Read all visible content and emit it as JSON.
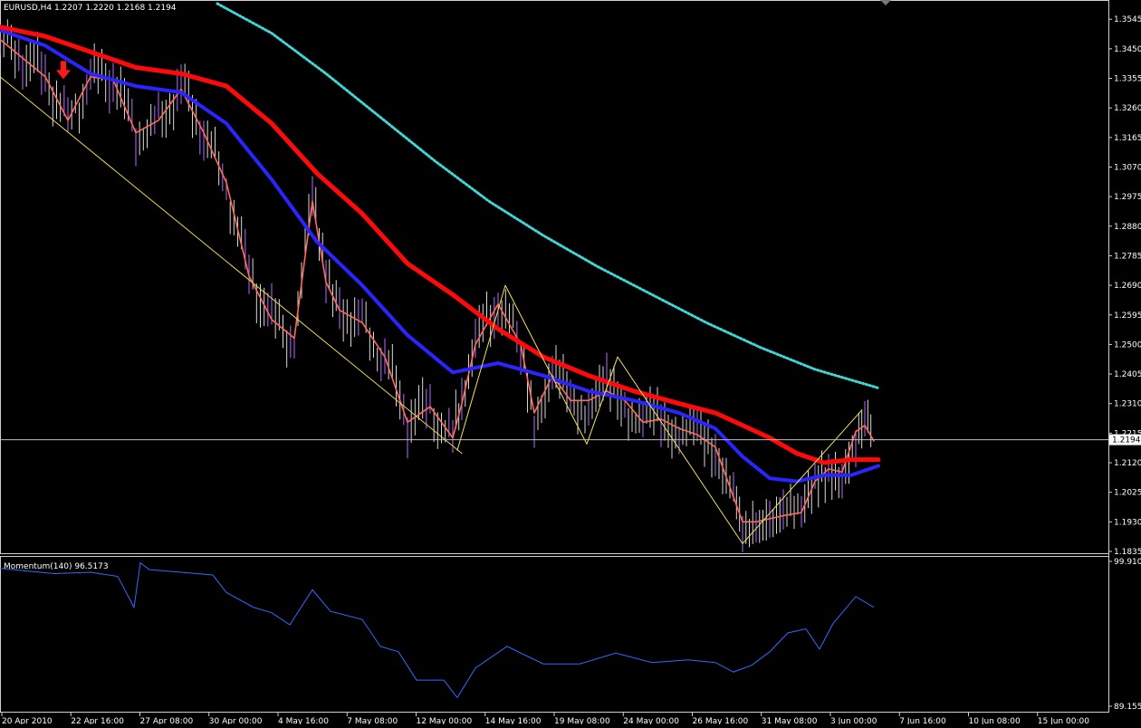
{
  "chart_data": [
    {
      "type": "line",
      "title": "EURUSD,H4  1.2207 1.2220 1.2168 1.2194",
      "price_axis": {
        "ylim": [
          1.1835,
          1.3595
        ],
        "tick_labels": [
          "1.3545",
          "1.3450",
          "1.3355",
          "1.3260",
          "1.3165",
          "1.3070",
          "1.2975",
          "1.2880",
          "1.2785",
          "1.2690",
          "1.2595",
          "1.2500",
          "1.2405",
          "1.2310",
          "1.2215",
          "1.2120",
          "1.2025",
          "1.1930",
          "1.1835"
        ],
        "current_price": "1.2194"
      },
      "x_tick_labels": [
        "20 Apr 2010",
        "22 Apr 16:00",
        "27 Apr 08:00",
        "30 Apr 00:00",
        "4 May 16:00",
        "7 May 08:00",
        "12 May 00:00",
        "14 May 16:00",
        "19 May 08:00",
        "24 May 00:00",
        "26 May 16:00",
        "31 May 08:00",
        "3 Jun 00:00",
        "7 Jun 16:00",
        "10 Jun 08:00",
        "15 Jun 00:00"
      ],
      "series": [
        {
          "style": "price-bars",
          "x": [
            0,
            25,
            50,
            75,
            100,
            125,
            150,
            175,
            200,
            225,
            250,
            275,
            300,
            325,
            345,
            360,
            375,
            400,
            425,
            450,
            475,
            500,
            510,
            525,
            550,
            575,
            590,
            610,
            630,
            650,
            670,
            690,
            710,
            730,
            750,
            770,
            790,
            810,
            820,
            835,
            850,
            865,
            885,
            900,
            915,
            930,
            945,
            955,
            965
          ],
          "y": [
            1.348,
            1.342,
            1.336,
            1.322,
            1.336,
            1.335,
            1.318,
            1.322,
            1.332,
            1.318,
            1.302,
            1.272,
            1.258,
            1.252,
            1.296,
            1.27,
            1.261,
            1.257,
            1.246,
            1.225,
            1.23,
            1.22,
            1.231,
            1.25,
            1.263,
            1.25,
            1.228,
            1.24,
            1.232,
            1.232,
            1.235,
            1.232,
            1.225,
            1.226,
            1.223,
            1.221,
            1.217,
            1.201,
            1.193,
            1.193,
            1.194,
            1.195,
            1.196,
            1.206,
            1.21,
            1.209,
            1.222,
            1.224,
            1.219
          ]
        },
        {
          "style": "ma-salmon",
          "x": [
            0,
            25,
            50,
            75,
            100,
            125,
            150,
            175,
            200,
            225,
            250,
            275,
            300,
            325,
            345,
            360,
            375,
            400,
            425,
            450,
            475,
            500,
            510,
            525,
            550,
            575,
            590,
            610,
            630,
            650,
            670,
            690,
            710,
            730,
            750,
            770,
            790,
            810,
            820,
            835,
            850,
            865,
            885,
            900,
            915,
            930,
            945,
            955,
            965
          ],
          "y": [
            1.348,
            1.342,
            1.336,
            1.322,
            1.336,
            1.335,
            1.318,
            1.322,
            1.332,
            1.318,
            1.302,
            1.272,
            1.258,
            1.252,
            1.296,
            1.27,
            1.261,
            1.257,
            1.246,
            1.225,
            1.23,
            1.22,
            1.231,
            1.25,
            1.263,
            1.25,
            1.228,
            1.24,
            1.232,
            1.232,
            1.235,
            1.232,
            1.225,
            1.226,
            1.223,
            1.221,
            1.217,
            1.201,
            1.193,
            1.193,
            1.194,
            1.195,
            1.196,
            1.206,
            1.21,
            1.209,
            1.222,
            1.224,
            1.219
          ]
        },
        {
          "style": "ma-blue",
          "x": [
            0,
            50,
            100,
            150,
            200,
            250,
            300,
            350,
            400,
            450,
            500,
            550,
            600,
            650,
            700,
            750,
            790,
            820,
            850,
            880,
            910,
            940,
            970
          ],
          "y": [
            1.351,
            1.346,
            1.337,
            1.333,
            1.331,
            1.321,
            1.303,
            1.283,
            1.269,
            1.253,
            1.241,
            1.244,
            1.24,
            1.235,
            1.232,
            1.228,
            1.223,
            1.214,
            1.207,
            1.206,
            1.208,
            1.208,
            1.211
          ]
        },
        {
          "style": "ma-red",
          "x": [
            0,
            50,
            100,
            150,
            200,
            250,
            300,
            350,
            400,
            450,
            500,
            550,
            600,
            650,
            700,
            750,
            790,
            820,
            850,
            880,
            910,
            940,
            970
          ],
          "y": [
            1.352,
            1.349,
            1.344,
            1.339,
            1.337,
            1.333,
            1.321,
            1.305,
            1.292,
            1.276,
            1.266,
            1.255,
            1.246,
            1.24,
            1.235,
            1.231,
            1.228,
            1.224,
            1.22,
            1.215,
            1.212,
            1.213,
            1.213
          ]
        },
        {
          "style": "ma-cyan-dotted",
          "x": [
            240,
            300,
            360,
            420,
            480,
            540,
            600,
            660,
            720,
            780,
            840,
            900,
            970
          ],
          "y": [
            1.3595,
            1.35,
            1.337,
            1.323,
            1.309,
            1.296,
            1.285,
            1.275,
            1.266,
            1.257,
            1.249,
            1.242,
            1.236
          ]
        },
        {
          "style": "zigzag-yellow",
          "x": [
            505,
            558,
            648,
            682,
            820,
            952
          ],
          "y": [
            1.216,
            1.269,
            1.218,
            1.246,
            1.186,
            1.229
          ]
        },
        {
          "style": "trend-yellow",
          "x": [
            0,
            510
          ],
          "y": [
            1.336,
            1.215
          ]
        }
      ],
      "annotations": [
        {
          "type": "sell-arrow",
          "x": 70,
          "y": 1.337
        }
      ]
    },
    {
      "type": "line",
      "title": "Momentum(140) 96.5173",
      "ylim": [
        89.1553,
        99.9107
      ],
      "tick_labels": [
        "99.9107",
        "89.1553"
      ],
      "series": [
        {
          "style": "momentum-line",
          "x": [
            0,
            30,
            60,
            100,
            130,
            148,
            155,
            165,
            200,
            235,
            250,
            280,
            300,
            320,
            345,
            365,
            400,
            420,
            440,
            460,
            490,
            505,
            525,
            560,
            600,
            640,
            680,
            720,
            760,
            790,
            810,
            830,
            850,
            870,
            890,
            905,
            920,
            945,
            965
          ],
          "y": [
            99.4,
            99.2,
            99.0,
            99.1,
            98.8,
            96.5,
            99.8,
            99.3,
            99.1,
            98.9,
            97.6,
            96.5,
            96.1,
            95.2,
            97.8,
            96.2,
            95.6,
            93.6,
            93.2,
            91.1,
            91.1,
            89.8,
            92.0,
            93.6,
            92.3,
            92.3,
            93.1,
            92.4,
            92.6,
            92.4,
            91.7,
            92.2,
            93.2,
            94.6,
            94.9,
            93.4,
            95.3,
            97.3,
            96.5
          ]
        }
      ]
    }
  ]
}
